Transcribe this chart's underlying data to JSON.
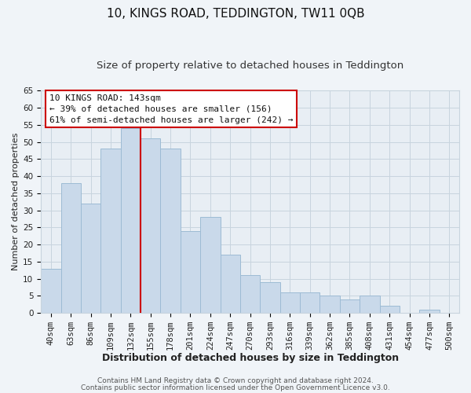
{
  "title": "10, KINGS ROAD, TEDDINGTON, TW11 0QB",
  "subtitle": "Size of property relative to detached houses in Teddington",
  "xlabel": "Distribution of detached houses by size in Teddington",
  "ylabel": "Number of detached properties",
  "bar_labels": [
    "40sqm",
    "63sqm",
    "86sqm",
    "109sqm",
    "132sqm",
    "155sqm",
    "178sqm",
    "201sqm",
    "224sqm",
    "247sqm",
    "270sqm",
    "293sqm",
    "316sqm",
    "339sqm",
    "362sqm",
    "385sqm",
    "408sqm",
    "431sqm",
    "454sqm",
    "477sqm",
    "500sqm"
  ],
  "bar_heights": [
    13,
    38,
    32,
    48,
    54,
    51,
    48,
    24,
    28,
    17,
    11,
    9,
    6,
    6,
    5,
    4,
    5,
    2,
    0,
    1,
    0
  ],
  "bar_color": "#c9d9ea",
  "bar_edgecolor": "#9dbbd4",
  "vline_x": 4.5,
  "vline_color": "#cc0000",
  "ylim": [
    0,
    65
  ],
  "yticks": [
    0,
    5,
    10,
    15,
    20,
    25,
    30,
    35,
    40,
    45,
    50,
    55,
    60,
    65
  ],
  "annotation_title": "10 KINGS ROAD: 143sqm",
  "annotation_line1": "← 39% of detached houses are smaller (156)",
  "annotation_line2": "61% of semi-detached houses are larger (242) →",
  "footer1": "Contains HM Land Registry data © Crown copyright and database right 2024.",
  "footer2": "Contains public sector information licensed under the Open Government Licence v3.0.",
  "background_color": "#f0f4f8",
  "plot_bg_color": "#e8eef4",
  "grid_color": "#c8d4de",
  "title_fontsize": 11,
  "subtitle_fontsize": 9.5,
  "xlabel_fontsize": 9,
  "ylabel_fontsize": 8,
  "tick_fontsize": 7.5,
  "footer_fontsize": 6.5,
  "ann_fontsize": 8
}
